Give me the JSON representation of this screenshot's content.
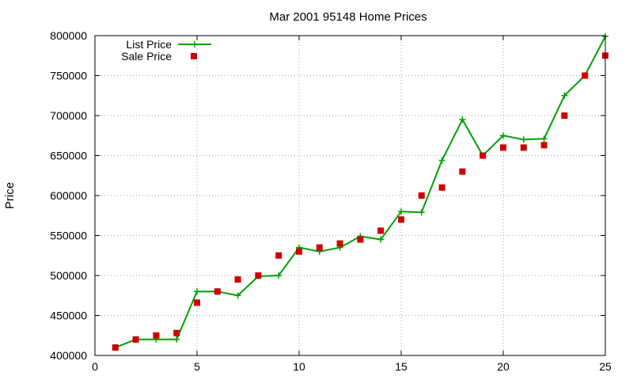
{
  "chart_data": {
    "type": "line",
    "title": "Mar 2001 95148 Home Prices",
    "xlabel": "",
    "ylabel": "Price",
    "xlim": [
      0,
      25
    ],
    "ylim": [
      400000,
      800000
    ],
    "x_ticks": [
      0,
      5,
      10,
      15,
      20,
      25
    ],
    "y_ticks": [
      400000,
      450000,
      500000,
      550000,
      600000,
      650000,
      700000,
      750000,
      800000
    ],
    "grid": true,
    "legend_position": "top-left",
    "series": [
      {
        "name": "List Price",
        "style": "line-with-plus-markers",
        "color": "#00a000",
        "x": [
          1,
          2,
          3,
          4,
          5,
          6,
          7,
          8,
          9,
          10,
          11,
          12,
          13,
          14,
          15,
          16,
          17,
          18,
          19,
          20,
          21,
          22,
          23,
          24,
          25
        ],
        "y": [
          410000,
          420000,
          420000,
          420000,
          480000,
          480000,
          475000,
          499000,
          500000,
          535000,
          530000,
          535000,
          549000,
          545000,
          580000,
          579000,
          644000,
          695000,
          650000,
          675000,
          670000,
          671000,
          725000,
          750000,
          799000
        ]
      },
      {
        "name": "Sale Price",
        "style": "square-markers",
        "color": "#cc0000",
        "x": [
          1,
          2,
          3,
          4,
          5,
          6,
          7,
          8,
          9,
          10,
          11,
          12,
          13,
          14,
          15,
          16,
          17,
          18,
          19,
          20,
          21,
          22,
          23,
          24,
          25
        ],
        "y": [
          410000,
          420000,
          425000,
          428000,
          466000,
          480000,
          495000,
          500000,
          525000,
          530000,
          535000,
          540000,
          545000,
          556000,
          570000,
          600000,
          610000,
          630000,
          650000,
          660000,
          660000,
          663000,
          700000,
          750000,
          775000
        ]
      }
    ]
  }
}
